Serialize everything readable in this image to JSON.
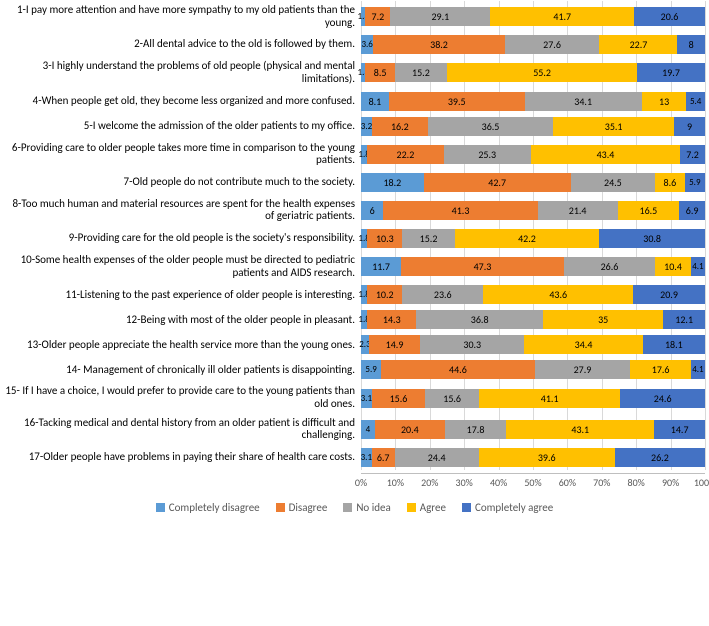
{
  "chart": {
    "type": "stacked-bar-horizontal",
    "xlim": [
      0,
      100
    ],
    "xtick_step": 10,
    "xtick_suffix": "%",
    "background_color": "#ffffff",
    "grid_color": "#d9d9d9",
    "label_fontsize": 11,
    "value_fontsize": 10,
    "colors": {
      "completely_disagree": "#5b9bd5",
      "disagree": "#ed7d31",
      "no_idea": "#a5a5a5",
      "agree": "#ffc000",
      "completely_agree": "#4472c4"
    },
    "legend": [
      {
        "key": "completely_disagree",
        "label": "Completely disagree"
      },
      {
        "key": "disagree",
        "label": "Disagree"
      },
      {
        "key": "no_idea",
        "label": "No idea"
      },
      {
        "key": "agree",
        "label": "Agree"
      },
      {
        "key": "completely_agree",
        "label": "Completely agree"
      }
    ],
    "items": [
      {
        "label": "1-I pay more attention and have more sympathy to my old patients than the young.",
        "values": {
          "completely_disagree": 1.3,
          "disagree": 7.2,
          "no_idea": 29.1,
          "agree": 41.7,
          "completely_agree": 20.6
        },
        "display": {
          "completely_disagree": "1.3",
          "disagree": "7.2",
          "no_idea": "29.1",
          "agree": "41.7",
          "completely_agree": "20.6"
        }
      },
      {
        "label": "2-All dental advice to the old is followed by them.",
        "values": {
          "completely_disagree": 3.6,
          "disagree": 38.2,
          "no_idea": 27.6,
          "agree": 22.7,
          "completely_agree": 8
        },
        "display": {
          "completely_disagree": "3.6",
          "disagree": "38.2",
          "no_idea": "27.6",
          "agree": "22.7",
          "completely_agree": "8"
        }
      },
      {
        "label": "3-I highly understand the problems of old people (physical and mental limitations).",
        "values": {
          "completely_disagree": 1.3,
          "disagree": 8.5,
          "no_idea": 15.2,
          "agree": 55.2,
          "completely_agree": 19.7
        },
        "display": {
          "completely_disagree": "1.3",
          "disagree": "8.5",
          "no_idea": "15.2",
          "agree": "55.2",
          "completely_agree": "19.7"
        }
      },
      {
        "label": "4-When people get old, they become less organized and more confused.",
        "values": {
          "completely_disagree": 8.1,
          "disagree": 39.5,
          "no_idea": 34.1,
          "agree": 13,
          "completely_agree": 5.4
        },
        "display": {
          "completely_disagree": "8.1",
          "disagree": "39.5",
          "no_idea": "34.1",
          "agree": "13",
          "completely_agree": "5.4"
        }
      },
      {
        "label": "5-I welcome the admission of the older patients to my office.",
        "values": {
          "completely_disagree": 3.2,
          "disagree": 16.2,
          "no_idea": 36.5,
          "agree": 35.1,
          "completely_agree": 9
        },
        "display": {
          "completely_disagree": "3.2",
          "disagree": "16.2",
          "no_idea": "36.5",
          "agree": "35.1",
          "completely_agree": "9"
        }
      },
      {
        "label": "6-Providing care to older people takes more time in comparison to the young patients.",
        "values": {
          "completely_disagree": 1.8,
          "disagree": 22.2,
          "no_idea": 25.3,
          "agree": 43.4,
          "completely_agree": 7.2
        },
        "display": {
          "completely_disagree": "1.8",
          "disagree": "22.2",
          "no_idea": "25.3",
          "agree": "43.4",
          "completely_agree": "7.2"
        }
      },
      {
        "label": "7-Old people do not contribute much to the society.",
        "values": {
          "completely_disagree": 18.2,
          "disagree": 42.7,
          "no_idea": 24.5,
          "agree": 8.6,
          "completely_agree": 5.9
        },
        "display": {
          "completely_disagree": "18.2",
          "disagree": "42.7",
          "no_idea": "24.5",
          "agree": "8.6",
          "completely_agree": "5.9"
        }
      },
      {
        "label": "8-Too much human and material resources are spent for the health expenses of geriatric patients.",
        "values": {
          "completely_disagree": 6,
          "disagree": 41.3,
          "no_idea": 21.4,
          "agree": 16.5,
          "completely_agree": 6.9
        },
        "display": {
          "completely_disagree": "6",
          "disagree": "41.3",
          "no_idea": "21.4",
          "agree": "16.5",
          "completely_agree": "6.9"
        }
      },
      {
        "label": "9-Providing care for the old people is the society's responsibility.",
        "values": {
          "completely_disagree": 1.8,
          "disagree": 10.3,
          "no_idea": 15.2,
          "agree": 42.2,
          "completely_agree": 30.8
        },
        "display": {
          "completely_disagree": "1.8",
          "disagree": "10.3",
          "no_idea": "15.2",
          "agree": "42.2",
          "completely_agree": "30.8"
        }
      },
      {
        "label": "10-Some health expenses of the older people must be directed to pediatric patients and AIDS research.",
        "values": {
          "completely_disagree": 11.7,
          "disagree": 47.3,
          "no_idea": 26.6,
          "agree": 10.4,
          "completely_agree": 4.1
        },
        "display": {
          "completely_disagree": "11.7",
          "disagree": "47.3",
          "no_idea": "26.6",
          "agree": "10.4",
          "completely_agree": "4.1"
        }
      },
      {
        "label": "11-Listening to the past experience of older people is interesting.",
        "values": {
          "completely_disagree": 1.8,
          "disagree": 10.2,
          "no_idea": 23.6,
          "agree": 43.6,
          "completely_agree": 20.9
        },
        "display": {
          "completely_disagree": "1.8",
          "disagree": "10.2",
          "no_idea": "23.6",
          "agree": "43.6",
          "completely_agree": "20.9"
        }
      },
      {
        "label": "12-Being with most of the older people in pleasant.",
        "values": {
          "completely_disagree": 1.8,
          "disagree": 14.3,
          "no_idea": 36.8,
          "agree": 35,
          "completely_agree": 12.1
        },
        "display": {
          "completely_disagree": "1.8",
          "disagree": "14.3",
          "no_idea": "36.8",
          "agree": "35",
          "completely_agree": "12.1"
        }
      },
      {
        "label": "13-Older people appreciate the health service more than the young ones.",
        "values": {
          "completely_disagree": 2.3,
          "disagree": 14.9,
          "no_idea": 30.3,
          "agree": 34.4,
          "completely_agree": 18.1
        },
        "display": {
          "completely_disagree": "2.3",
          "disagree": "14.9",
          "no_idea": "30.3",
          "agree": "34.4",
          "completely_agree": "18.1"
        }
      },
      {
        "label": "14- Management of chronically ill older patients is disappointing.",
        "values": {
          "completely_disagree": 5.9,
          "disagree": 44.6,
          "no_idea": 27.9,
          "agree": 17.6,
          "completely_agree": 4.1
        },
        "display": {
          "completely_disagree": "5.9",
          "disagree": "44.6",
          "no_idea": "27.9",
          "agree": "17.6",
          "completely_agree": "4.1"
        }
      },
      {
        "label": "15- If I have a choice, I would prefer to provide care to the young patients than old ones.",
        "values": {
          "completely_disagree": 3.1,
          "disagree": 15.6,
          "no_idea": 15.6,
          "agree": 41.1,
          "completely_agree": 24.6
        },
        "display": {
          "completely_disagree": "3.1",
          "disagree": "15.6",
          "no_idea": "15.6",
          "agree": "41.1",
          "completely_agree": "24.6"
        }
      },
      {
        "label": "16-Tacking medical and dental history from an older patient is difficult and challenging.",
        "values": {
          "completely_disagree": 4,
          "disagree": 20.4,
          "no_idea": 17.8,
          "agree": 43.1,
          "completely_agree": 14.7
        },
        "display": {
          "completely_disagree": "4",
          "disagree": "20.4",
          "no_idea": "17.8",
          "agree": "43.1",
          "completely_agree": "14.7"
        }
      },
      {
        "label": "17-Older people have problems in paying their share of health  care costs.",
        "values": {
          "completely_disagree": 3.1,
          "disagree": 6.7,
          "no_idea": 24.4,
          "agree": 39.6,
          "completely_agree": 26.2
        },
        "display": {
          "completely_disagree": "3.1",
          "disagree": "6.7",
          "no_idea": "24.4",
          "agree": "39.6",
          "completely_agree": "26.2"
        }
      }
    ]
  }
}
